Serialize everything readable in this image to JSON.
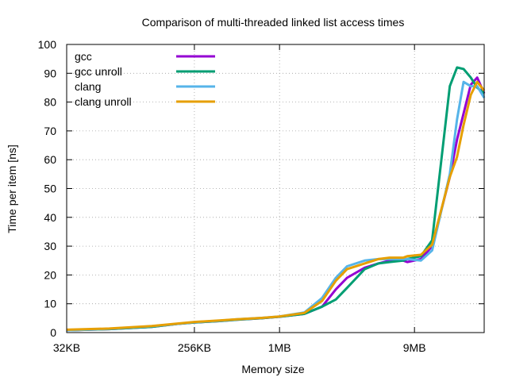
{
  "chart_data": {
    "type": "line",
    "title": "Comparison of multi-threaded linked list access times",
    "xlabel": "Memory size",
    "ylabel": "Time per item [ns]",
    "x_scale": "log2",
    "x_unit": "KB",
    "xlim": [
      32,
      28672
    ],
    "ylim": [
      0,
      100
    ],
    "y_ticks": [
      0,
      10,
      20,
      30,
      40,
      50,
      60,
      70,
      80,
      90,
      100
    ],
    "x_ticks": [
      {
        "value": 32,
        "label": "32KB"
      },
      {
        "value": 256,
        "label": "256KB"
      },
      {
        "value": 1024,
        "label": "1MB"
      },
      {
        "value": 9216,
        "label": "9MB"
      }
    ],
    "grid": true,
    "legend_position": "top-left",
    "series": [
      {
        "name": "gcc",
        "color": "#9400d3",
        "points": [
          [
            32,
            0.8
          ],
          [
            64,
            1.2
          ],
          [
            128,
            2.0
          ],
          [
            192,
            3.0
          ],
          [
            256,
            3.5
          ],
          [
            384,
            4.0
          ],
          [
            512,
            4.5
          ],
          [
            768,
            5.0
          ],
          [
            1024,
            5.5
          ],
          [
            1536,
            6.5
          ],
          [
            2048,
            9.0
          ],
          [
            2560,
            15.0
          ],
          [
            3072,
            19.0
          ],
          [
            4096,
            22.5
          ],
          [
            5120,
            24.0
          ],
          [
            6144,
            25.0
          ],
          [
            7680,
            25.0
          ],
          [
            8192,
            24.5
          ],
          [
            10240,
            25.5
          ],
          [
            12288,
            30.0
          ],
          [
            16384,
            54.0
          ],
          [
            18432,
            67.0
          ],
          [
            20480,
            76.0
          ],
          [
            23040,
            86.0
          ],
          [
            25600,
            88.5
          ],
          [
            28672,
            83.0
          ]
        ]
      },
      {
        "name": "gcc unroll",
        "color": "#009e73",
        "points": [
          [
            32,
            0.8
          ],
          [
            64,
            1.2
          ],
          [
            128,
            2.0
          ],
          [
            192,
            3.0
          ],
          [
            256,
            3.5
          ],
          [
            384,
            4.0
          ],
          [
            512,
            4.5
          ],
          [
            768,
            5.0
          ],
          [
            1024,
            5.5
          ],
          [
            1536,
            6.5
          ],
          [
            2048,
            9.0
          ],
          [
            2560,
            11.5
          ],
          [
            3072,
            15.5
          ],
          [
            4096,
            22.0
          ],
          [
            5120,
            24.0
          ],
          [
            6144,
            24.5
          ],
          [
            7680,
            25.0
          ],
          [
            8192,
            25.5
          ],
          [
            10240,
            26.5
          ],
          [
            12288,
            32.0
          ],
          [
            16384,
            85.5
          ],
          [
            18432,
            92.0
          ],
          [
            20480,
            91.5
          ],
          [
            23040,
            88.5
          ],
          [
            25600,
            85.0
          ],
          [
            28672,
            83.0
          ]
        ]
      },
      {
        "name": "clang",
        "color": "#56b4e9",
        "points": [
          [
            32,
            0.8
          ],
          [
            64,
            1.3
          ],
          [
            128,
            2.2
          ],
          [
            192,
            3.0
          ],
          [
            256,
            3.6
          ],
          [
            384,
            4.1
          ],
          [
            512,
            4.6
          ],
          [
            768,
            5.1
          ],
          [
            1024,
            5.6
          ],
          [
            1536,
            7.0
          ],
          [
            2048,
            12.0
          ],
          [
            2560,
            19.0
          ],
          [
            3072,
            23.0
          ],
          [
            4096,
            25.0
          ],
          [
            5120,
            25.5
          ],
          [
            6144,
            25.5
          ],
          [
            7680,
            25.5
          ],
          [
            8192,
            25.5
          ],
          [
            10240,
            25.0
          ],
          [
            12288,
            28.5
          ],
          [
            16384,
            55.0
          ],
          [
            18432,
            74.0
          ],
          [
            20480,
            87.0
          ],
          [
            23040,
            85.5
          ],
          [
            25600,
            85.5
          ],
          [
            28672,
            81.5
          ]
        ]
      },
      {
        "name": "clang unroll",
        "color": "#e69f00",
        "points": [
          [
            32,
            1.0
          ],
          [
            64,
            1.4
          ],
          [
            128,
            2.3
          ],
          [
            192,
            3.1
          ],
          [
            256,
            3.7
          ],
          [
            384,
            4.2
          ],
          [
            512,
            4.6
          ],
          [
            768,
            5.1
          ],
          [
            1024,
            5.6
          ],
          [
            1536,
            6.8
          ],
          [
            2048,
            11.0
          ],
          [
            2560,
            18.0
          ],
          [
            3072,
            22.0
          ],
          [
            4096,
            24.0
          ],
          [
            5120,
            25.5
          ],
          [
            6144,
            26.0
          ],
          [
            7680,
            26.0
          ],
          [
            8192,
            26.5
          ],
          [
            10240,
            27.0
          ],
          [
            12288,
            30.5
          ],
          [
            16384,
            54.0
          ],
          [
            18432,
            61.0
          ],
          [
            20480,
            72.0
          ],
          [
            23040,
            82.5
          ],
          [
            25600,
            87.0
          ],
          [
            28672,
            84.0
          ]
        ]
      }
    ]
  }
}
